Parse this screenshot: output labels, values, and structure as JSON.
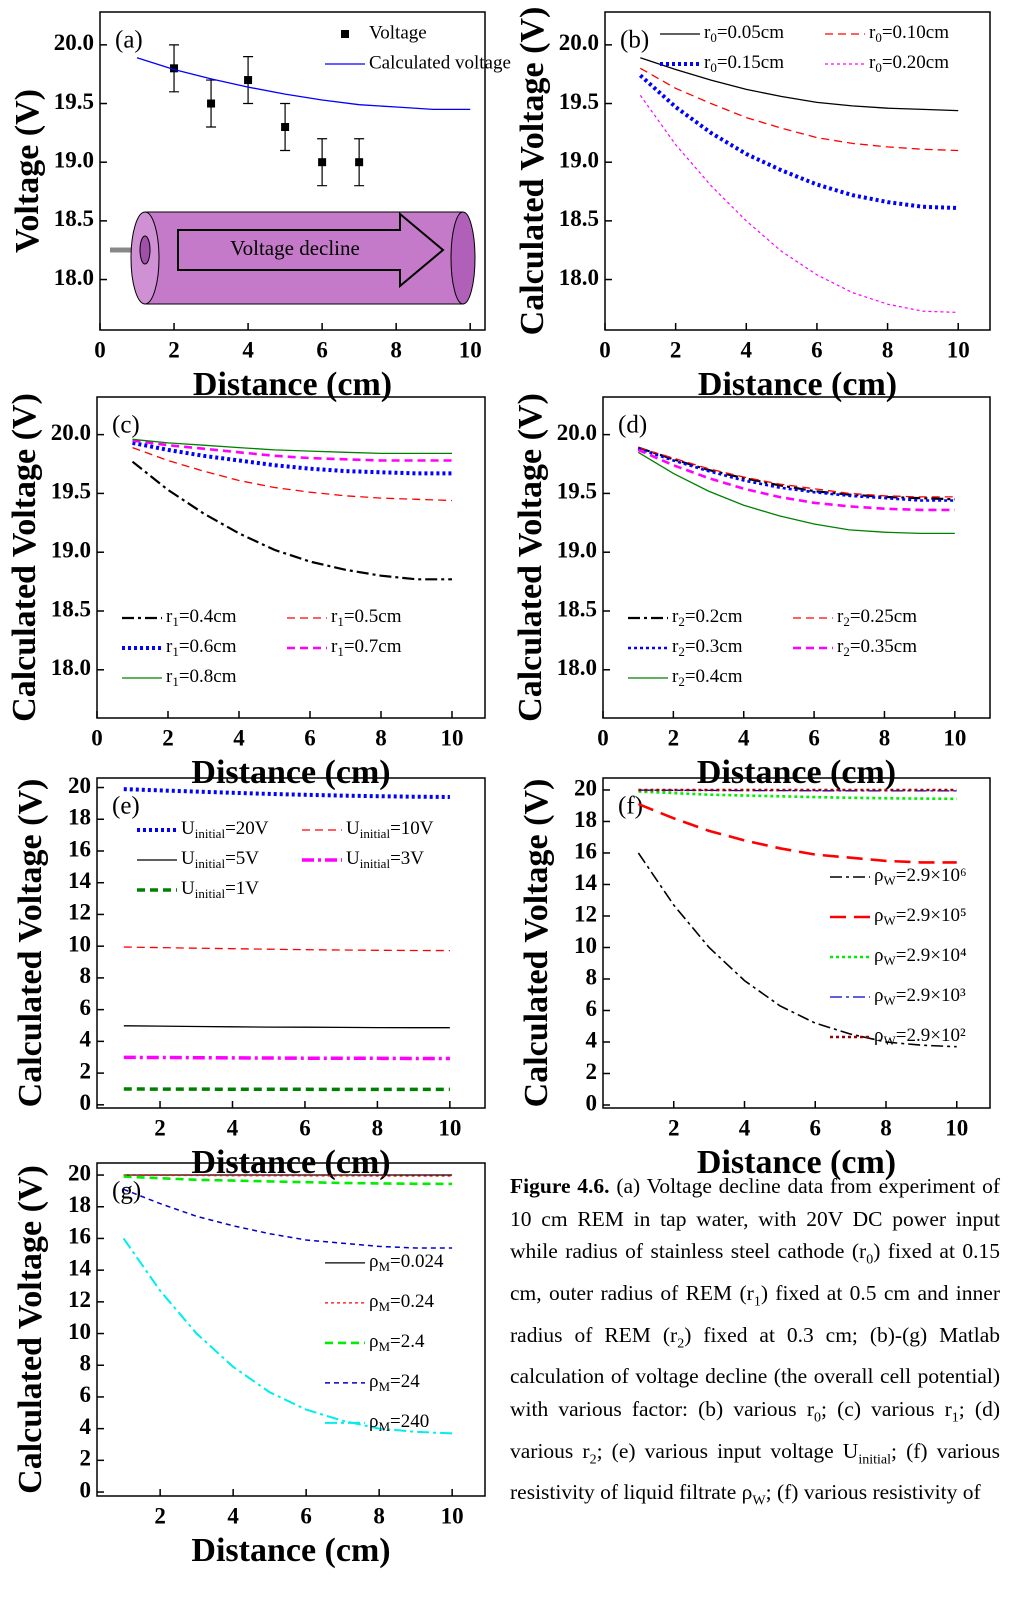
{
  "chart_data": [
    {
      "type": "line",
      "label": "(a)",
      "xlabel": "Distance (cm)",
      "ylabel": "Voltage (V)",
      "annotation": "Voltage decline",
      "x": [
        1,
        2,
        3,
        4,
        5,
        6,
        7,
        8,
        9,
        10
      ],
      "xlim": [
        0,
        10.4
      ],
      "ylim": [
        17.57,
        20.28
      ],
      "xticks": [
        0,
        2,
        4,
        6,
        8,
        10
      ],
      "yticks": [
        {
          "value": 18,
          "label": "18.0"
        },
        {
          "value": 18.5,
          "label": "18.5"
        },
        {
          "value": 19,
          "label": "19.0"
        },
        {
          "value": 19.5,
          "label": "19.5"
        },
        {
          "value": 20,
          "label": "20.0"
        }
      ],
      "legend": "upper-right",
      "legend_columns": 1,
      "series": [
        {
          "name": "Voltage",
          "type": "scatter",
          "color": "#000000",
          "x": [
            2,
            3,
            4,
            5,
            6,
            7
          ],
          "values": [
            19.8,
            19.5,
            19.7,
            19.3,
            19.0,
            19.0
          ],
          "errors": [
            0.2,
            0.2,
            0.2,
            0.2,
            0.2,
            0.2
          ]
        },
        {
          "name": "Calculated voltage",
          "color": "#0000ff",
          "dash": "solid",
          "width": 1.3,
          "values": [
            19.89,
            19.79,
            19.71,
            19.64,
            19.58,
            19.53,
            19.49,
            19.47,
            19.45,
            19.45
          ]
        }
      ]
    },
    {
      "type": "line",
      "label": "(b)",
      "xlabel": "Distance (cm)",
      "ylabel": "Calculated Voltage (V)",
      "x": [
        1,
        2,
        3,
        4,
        5,
        6,
        7,
        8,
        9,
        10
      ],
      "xlim": [
        0,
        10.9
      ],
      "ylim": [
        17.57,
        20.28
      ],
      "xticks": [
        0,
        2,
        4,
        6,
        8,
        10
      ],
      "yticks": [
        {
          "value": 18,
          "label": "18.0"
        },
        {
          "value": 18.5,
          "label": "18.5"
        },
        {
          "value": 19,
          "label": "19.0"
        },
        {
          "value": 19.5,
          "label": "19.5"
        },
        {
          "value": 20,
          "label": "20.0"
        }
      ],
      "legend": "upper-right",
      "legend_columns": 2,
      "series": [
        {
          "name": "r0=0.05cm",
          "color": "#000000",
          "dash": "solid",
          "width": 1.3,
          "values": [
            19.89,
            19.79,
            19.7,
            19.62,
            19.56,
            19.51,
            19.48,
            19.46,
            19.45,
            19.44
          ]
        },
        {
          "name": "r0=0.10cm",
          "color": "#ff0000",
          "dash": "dashed",
          "width": 1.3,
          "values": [
            19.8,
            19.63,
            19.5,
            19.38,
            19.29,
            19.21,
            19.16,
            19.13,
            19.11,
            19.1
          ]
        },
        {
          "name": "r0=0.15cm",
          "color": "#0000ff",
          "dash": "dotted",
          "width": 4,
          "values": [
            19.74,
            19.47,
            19.25,
            19.07,
            18.93,
            18.81,
            18.72,
            18.66,
            18.62,
            18.61
          ]
        },
        {
          "name": "r0=0.20cm",
          "color": "#ff00ff",
          "dash": "dotted",
          "width": 1.2,
          "values": [
            19.57,
            19.15,
            18.8,
            18.5,
            18.24,
            18.04,
            17.89,
            17.79,
            17.73,
            17.72
          ]
        }
      ]
    },
    {
      "type": "line",
      "label": "(c)",
      "xlabel": "Distance (cm)",
      "ylabel": "Calculated Voltage (V)",
      "x": [
        1,
        2,
        3,
        4,
        5,
        6,
        7,
        8,
        9,
        10
      ],
      "xlim": [
        0,
        10.93
      ],
      "ylim": [
        17.59,
        20.32
      ],
      "xticks": [
        0,
        2,
        4,
        6,
        8,
        10
      ],
      "yticks": [
        {
          "value": 18,
          "label": "18.0"
        },
        {
          "value": 18.5,
          "label": "18.5"
        },
        {
          "value": 19,
          "label": "19.0"
        },
        {
          "value": 19.5,
          "label": "19.5"
        },
        {
          "value": 20,
          "label": "20.0"
        }
      ],
      "legend": "lower-left",
      "legend_columns": 2,
      "series": [
        {
          "name": "r1=0.4cm",
          "color": "#000000",
          "dash": "dashdot",
          "width": 2.2,
          "values": [
            19.77,
            19.53,
            19.33,
            19.16,
            19.02,
            18.92,
            18.85,
            18.8,
            18.77,
            18.77
          ]
        },
        {
          "name": "r1=0.5cm",
          "color": "#ff0000",
          "dash": "dashed",
          "width": 1.3,
          "values": [
            19.89,
            19.78,
            19.69,
            19.61,
            19.55,
            19.51,
            19.48,
            19.46,
            19.45,
            19.44
          ]
        },
        {
          "name": "r1=0.6cm",
          "color": "#0000ff",
          "dash": "dotted",
          "width": 4,
          "values": [
            19.93,
            19.87,
            19.82,
            19.78,
            19.74,
            19.71,
            19.69,
            19.68,
            19.67,
            19.67
          ]
        },
        {
          "name": "r1=0.7cm",
          "color": "#ff00ff",
          "dash": "dashed",
          "width": 2.6,
          "values": [
            19.95,
            19.91,
            19.88,
            19.85,
            19.82,
            19.8,
            19.79,
            19.78,
            19.78,
            19.78
          ]
        },
        {
          "name": "r1=0.8cm",
          "color": "#008000",
          "dash": "solid",
          "width": 1.3,
          "values": [
            19.96,
            19.93,
            19.91,
            19.89,
            19.87,
            19.86,
            19.85,
            19.84,
            19.84,
            19.84
          ]
        }
      ]
    },
    {
      "type": "line",
      "label": "(d)",
      "xlabel": "Distance (cm)",
      "ylabel": "Calculated Voltage (V)",
      "x": [
        1,
        2,
        3,
        4,
        5,
        6,
        7,
        8,
        9,
        10
      ],
      "xlim": [
        0,
        11
      ],
      "ylim": [
        17.59,
        20.32
      ],
      "xticks": [
        0,
        2,
        4,
        6,
        8,
        10
      ],
      "yticks": [
        {
          "value": 18,
          "label": "18.0"
        },
        {
          "value": 18.5,
          "label": "18.5"
        },
        {
          "value": 19,
          "label": "19.0"
        },
        {
          "value": 19.5,
          "label": "19.5"
        },
        {
          "value": 20,
          "label": "20.0"
        }
      ],
      "legend": "lower-left",
      "legend_columns": 2,
      "series": [
        {
          "name": "r2=0.2cm",
          "color": "#000000",
          "dash": "dashdot",
          "width": 2.2,
          "values": [
            19.89,
            19.79,
            19.7,
            19.63,
            19.57,
            19.52,
            19.49,
            19.47,
            19.46,
            19.45
          ]
        },
        {
          "name": "r2=0.25cm",
          "color": "#ff0000",
          "dash": "dashed",
          "width": 1.3,
          "values": [
            19.89,
            19.8,
            19.71,
            19.64,
            19.58,
            19.54,
            19.5,
            19.48,
            19.47,
            19.47
          ]
        },
        {
          "name": "r2=0.3cm",
          "color": "#0000ff",
          "dash": "dotted",
          "width": 2.6,
          "values": [
            19.88,
            19.78,
            19.69,
            19.61,
            19.55,
            19.51,
            19.48,
            19.46,
            19.44,
            19.44
          ]
        },
        {
          "name": "r2=0.35cm",
          "color": "#ff00ff",
          "dash": "dashed",
          "width": 2.6,
          "values": [
            19.87,
            19.74,
            19.63,
            19.54,
            19.47,
            19.42,
            19.39,
            19.37,
            19.36,
            19.36
          ]
        },
        {
          "name": "r2=0.4cm",
          "color": "#008000",
          "dash": "solid",
          "width": 1.3,
          "values": [
            19.85,
            19.67,
            19.52,
            19.4,
            19.31,
            19.24,
            19.19,
            19.17,
            19.16,
            19.16
          ]
        }
      ]
    },
    {
      "type": "line",
      "label": "(e)",
      "xlabel": "Distance (cm)",
      "ylabel": "Calculated Voltage (V)",
      "x": [
        1,
        2,
        3,
        4,
        5,
        6,
        7,
        8,
        9,
        10
      ],
      "xlim": [
        0.26,
        10.97
      ],
      "ylim": [
        -0.2,
        20.6
      ],
      "xticks": [
        2,
        4,
        6,
        8,
        10
      ],
      "yticks": [
        0,
        2,
        4,
        6,
        8,
        10,
        12,
        14,
        16,
        18,
        20
      ],
      "legend": "upper-left",
      "legend_columns": 2,
      "series": [
        {
          "name": "Uinitial=20V",
          "color": "#0000ff",
          "dash": "dotted",
          "width": 4,
          "values": [
            19.9,
            19.82,
            19.74,
            19.67,
            19.6,
            19.54,
            19.49,
            19.45,
            19.42,
            19.4
          ]
        },
        {
          "name": "Uinitial=10V",
          "color": "#ff0000",
          "dash": "dashed",
          "width": 1.3,
          "values": [
            9.95,
            9.91,
            9.87,
            9.84,
            9.81,
            9.78,
            9.76,
            9.74,
            9.73,
            9.72
          ]
        },
        {
          "name": "Uinitial=5V",
          "color": "#000000",
          "dash": "solid",
          "width": 1.3,
          "values": [
            4.98,
            4.96,
            4.94,
            4.92,
            4.9,
            4.89,
            4.88,
            4.87,
            4.86,
            4.86
          ]
        },
        {
          "name": "Uinitial=3V",
          "color": "#ff00ff",
          "dash": "dashdot",
          "width": 3.5,
          "values": [
            2.99,
            2.98,
            2.97,
            2.96,
            2.95,
            2.94,
            2.93,
            2.93,
            2.92,
            2.92
          ]
        },
        {
          "name": "Uinitial=1V",
          "color": "#008000",
          "dash": "dashed",
          "width": 3.5,
          "values": [
            1.0,
            0.99,
            0.99,
            0.98,
            0.98,
            0.98,
            0.97,
            0.97,
            0.97,
            0.97
          ]
        }
      ]
    },
    {
      "type": "line",
      "label": "(f)",
      "xlabel": "Distance (cm)",
      "ylabel": "Calculated Voltage (V)",
      "x": [
        1,
        2,
        3,
        4,
        5,
        6,
        7,
        8,
        9,
        10
      ],
      "xlim": [
        0,
        10.94
      ],
      "ylim": [
        -0.19,
        20.76
      ],
      "xticks": [
        2,
        4,
        6,
        8,
        10
      ],
      "yticks": [
        0,
        2,
        4,
        6,
        8,
        10,
        12,
        14,
        16,
        18,
        20
      ],
      "legend": "center-right",
      "legend_columns": 1,
      "series": [
        {
          "name": "ρW=2.9×10⁶",
          "color": "#000000",
          "dash": "dashdot",
          "width": 1.6,
          "values": [
            16.0,
            12.7,
            10.0,
            7.9,
            6.3,
            5.2,
            4.5,
            4.0,
            3.8,
            3.7
          ]
        },
        {
          "name": "ρW=2.9×10⁵",
          "color": "#ff0000",
          "dash": "longdash",
          "width": 2.6,
          "values": [
            19.1,
            18.2,
            17.4,
            16.8,
            16.3,
            15.9,
            15.7,
            15.5,
            15.4,
            15.4
          ]
        },
        {
          "name": "ρW=2.9×10⁴",
          "color": "#00ee00",
          "dash": "dotted",
          "width": 2.6,
          "values": [
            19.9,
            19.8,
            19.7,
            19.65,
            19.6,
            19.55,
            19.5,
            19.47,
            19.45,
            19.44
          ]
        },
        {
          "name": "ρW=2.9×10³",
          "color": "#0000cc",
          "dash": "dashdot",
          "width": 1.3,
          "values": [
            19.99,
            19.98,
            19.97,
            19.96,
            19.96,
            19.95,
            19.95,
            19.94,
            19.94,
            19.94
          ]
        },
        {
          "name": "ρW=2.9×10²",
          "color": "#990000",
          "dash": "dotted",
          "width": 2.6,
          "values": [
            20.0,
            20.0,
            20.0,
            20.0,
            20.0,
            20.0,
            20.0,
            20.0,
            20.0,
            20.0
          ]
        }
      ]
    },
    {
      "type": "line",
      "label": "(g)",
      "xlabel": "Distance (cm)",
      "ylabel": "Calculated Voltage (V)",
      "x": [
        1,
        2,
        3,
        4,
        5,
        6,
        7,
        8,
        9,
        10
      ],
      "xlim": [
        0.27,
        10.9
      ],
      "ylim": [
        -0.25,
        20.76
      ],
      "xticks": [
        2,
        4,
        6,
        8,
        10
      ],
      "yticks": [
        0,
        2,
        4,
        6,
        8,
        10,
        12,
        14,
        16,
        18,
        20
      ],
      "legend": "center-right",
      "legend_columns": 1,
      "series": [
        {
          "name": "ρM=0.024",
          "color": "#000000",
          "dash": "solid",
          "width": 1.3,
          "values": [
            20.0,
            20.0,
            20.0,
            20.0,
            20.0,
            20.0,
            20.0,
            20.0,
            20.0,
            20.0
          ]
        },
        {
          "name": "ρM=0.24",
          "color": "#ff0000",
          "dash": "dotted",
          "width": 1.3,
          "values": [
            19.99,
            19.98,
            19.97,
            19.96,
            19.96,
            19.95,
            19.95,
            19.94,
            19.94,
            19.94
          ]
        },
        {
          "name": "ρM=2.4",
          "color": "#00ee00",
          "dash": "dashed",
          "width": 2.6,
          "values": [
            19.9,
            19.8,
            19.7,
            19.65,
            19.6,
            19.55,
            19.5,
            19.47,
            19.45,
            19.44
          ]
        },
        {
          "name": "ρM=24",
          "color": "#0000cc",
          "dash": "shortdash",
          "width": 1.5,
          "values": [
            19.1,
            18.2,
            17.4,
            16.8,
            16.3,
            15.9,
            15.7,
            15.5,
            15.4,
            15.4
          ]
        },
        {
          "name": "ρM=240",
          "color": "#00eeee",
          "dash": "dashdot",
          "width": 2,
          "values": [
            16.0,
            12.7,
            10.0,
            7.9,
            6.3,
            5.2,
            4.5,
            4.0,
            3.8,
            3.7
          ]
        }
      ]
    }
  ],
  "caption": {
    "label": "Figure 4.6.",
    "parts": [
      "(a) Voltage decline data from experiment of 10 cm REM in tap water, with 20V DC power input while radius of stainless steel cathode (r",
      {
        "sub": "0"
      },
      ") fixed at 0.15 cm, outer radius of REM (r",
      {
        "sub": "1"
      },
      ") fixed at 0.5 cm and inner radius of REM (r",
      {
        "sub": "2"
      },
      ") fixed at 0.3 cm; (b)-(g) Matlab calculation of voltage decline (the overall cell potential) with various factor: (b) various r",
      {
        "sub": "0"
      },
      "; (c) various r",
      {
        "sub": "1"
      },
      "; (d) various r",
      {
        "sub": "2"
      },
      "; (e) various input voltage U",
      {
        "sub": "initial"
      },
      "; (f) various resistivity of liquid filtrate ρ",
      {
        "sub": "W"
      },
      "; (f) various resistivity of"
    ]
  }
}
